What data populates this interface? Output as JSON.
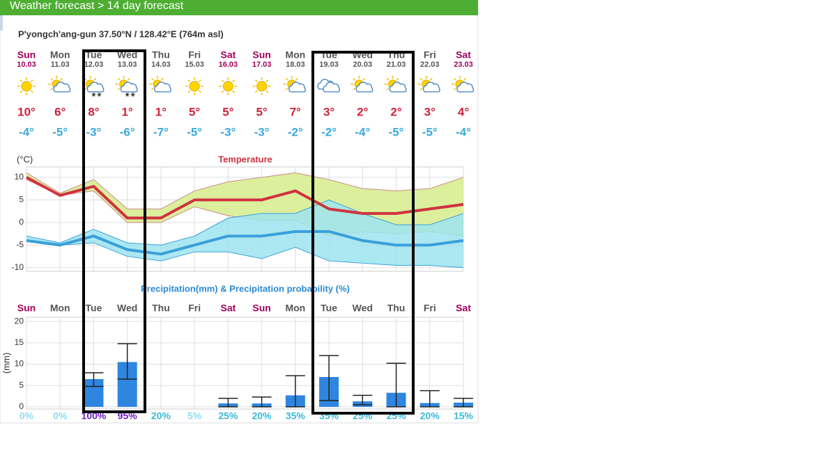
{
  "header": {
    "title": "Weather forecast > 14 day forecast"
  },
  "location": "P'yongch'ang-gun  37.50°N / 128.42°E (764m asl)",
  "days": [
    {
      "day": "Sun",
      "date": "10.03",
      "high": "10°",
      "low": "-4°",
      "color": "#a3005c",
      "icon": "sun"
    },
    {
      "day": "Mon",
      "date": "11.03",
      "high": "6°",
      "low": "-5°",
      "color": "#555555",
      "icon": "sun-cloud"
    },
    {
      "day": "Tue",
      "date": "12.03",
      "high": "8°",
      "low": "-3°",
      "color": "#555555",
      "icon": "sun-cloud-snow"
    },
    {
      "day": "Wed",
      "date": "13.03",
      "high": "1°",
      "low": "-6°",
      "color": "#555555",
      "icon": "sun-cloud-snow"
    },
    {
      "day": "Thu",
      "date": "14.03",
      "high": "1°",
      "low": "-7°",
      "color": "#555555",
      "icon": "sun-cloud"
    },
    {
      "day": "Fri",
      "date": "15.03",
      "high": "5°",
      "low": "-5°",
      "color": "#555555",
      "icon": "sun"
    },
    {
      "day": "Sat",
      "date": "16.03",
      "high": "5°",
      "low": "-3°",
      "color": "#a3005c",
      "icon": "sun"
    },
    {
      "day": "Sun",
      "date": "17.03",
      "high": "5°",
      "low": "-3°",
      "color": "#a3005c",
      "icon": "sun"
    },
    {
      "day": "Mon",
      "date": "18.03",
      "high": "7°",
      "low": "-2°",
      "color": "#555555",
      "icon": "sun-cloud"
    },
    {
      "day": "Tue",
      "date": "19.03",
      "high": "3°",
      "low": "-2°",
      "color": "#555555",
      "icon": "cloud"
    },
    {
      "day": "Wed",
      "date": "20.03",
      "high": "2°",
      "low": "-4°",
      "color": "#555555",
      "icon": "sun-cloud"
    },
    {
      "day": "Thu",
      "date": "21.03",
      "high": "2°",
      "low": "-5°",
      "color": "#555555",
      "icon": "sun-cloud"
    },
    {
      "day": "Fri",
      "date": "22.03",
      "high": "3°",
      "low": "-5°",
      "color": "#555555",
      "icon": "sun-cloud"
    },
    {
      "day": "Sat",
      "date": "23.03",
      "high": "4°",
      "low": "-4°",
      "color": "#a3005c",
      "icon": "sun-cloud"
    }
  ],
  "temperature_chart": {
    "type": "line",
    "title": "Temperature",
    "y_label": "(°C)",
    "ylim": [
      -10.8,
      12.3
    ],
    "yticks": [
      10,
      5,
      0,
      -5,
      -10
    ],
    "grid": true,
    "bands": [
      {
        "color": "#dcef9c",
        "edge": "#c98a8a",
        "upper": [
          11,
          6.5,
          9.5,
          3,
          3,
          7,
          9,
          10,
          11,
          9.5,
          7.5,
          7,
          7.5,
          10
        ],
        "lower": [
          9.5,
          6,
          7,
          0,
          0,
          3.5,
          1.5,
          0.5,
          0.5,
          -3,
          -2,
          -2.5,
          -2,
          -3
        ]
      },
      {
        "color": "#9ee4ef",
        "edge": "#3a9fdb",
        "upper": [
          -3,
          -4.5,
          -1.5,
          -4.5,
          -5,
          -3,
          1,
          2,
          2,
          5,
          2,
          -0.5,
          -0.5,
          2
        ],
        "lower": [
          -4,
          -5,
          -4.5,
          -7.5,
          -8.5,
          -6.5,
          -6.5,
          -8,
          -5.5,
          -8.5,
          -9,
          -9.5,
          -9.5,
          -10
        ]
      }
    ],
    "series": [
      {
        "color": "#d0323f",
        "values": [
          10,
          6,
          8,
          1,
          1,
          5,
          5,
          5,
          7,
          3,
          2,
          2,
          3,
          4
        ]
      },
      {
        "color": "#3a9fdb",
        "values": [
          -4,
          -5,
          -3,
          -6,
          -7,
          -5,
          -3,
          -3,
          -2,
          -2,
          -4,
          -5,
          -5,
          -4
        ]
      }
    ]
  },
  "precipitation_chart": {
    "type": "bar",
    "title": "Precipitation(mm) & Precipitation probability (%)",
    "y_label": "(mm)",
    "ylim": [
      -0.5,
      21
    ],
    "yticks": [
      20,
      15,
      10,
      5,
      0
    ],
    "grid": true,
    "color": "#2f86e0",
    "values": [
      0,
      0,
      6.5,
      10.5,
      0,
      0,
      0.8,
      0.8,
      2.7,
      7,
      1.3,
      3.3,
      0.9,
      1
    ],
    "error_low": [
      0,
      0,
      4.8,
      6.5,
      0,
      0,
      0,
      0,
      0,
      1.5,
      0.5,
      0,
      0,
      0
    ],
    "error_high": [
      0,
      0,
      8,
      14.8,
      0,
      0,
      2,
      2.3,
      7.3,
      12,
      2.7,
      10.2,
      3.8,
      2
    ],
    "probability_labels": [
      "0%",
      "0%",
      "100%",
      "95%",
      "20%",
      "5%",
      "25%",
      "20%",
      "35%",
      "35%",
      "25%",
      "25%",
      "20%",
      "15%"
    ],
    "probability_colors": [
      "#8fdcef",
      "#8fdcef",
      "#6a1fc0",
      "#6a1fc0",
      "#3bb8d8",
      "#8fdcef",
      "#3bb8d8",
      "#3bb8d8",
      "#3bb8d8",
      "#3bb8d8",
      "#3bb8d8",
      "#3bb8d8",
      "#3bb8d8",
      "#3bb8d8"
    ]
  }
}
